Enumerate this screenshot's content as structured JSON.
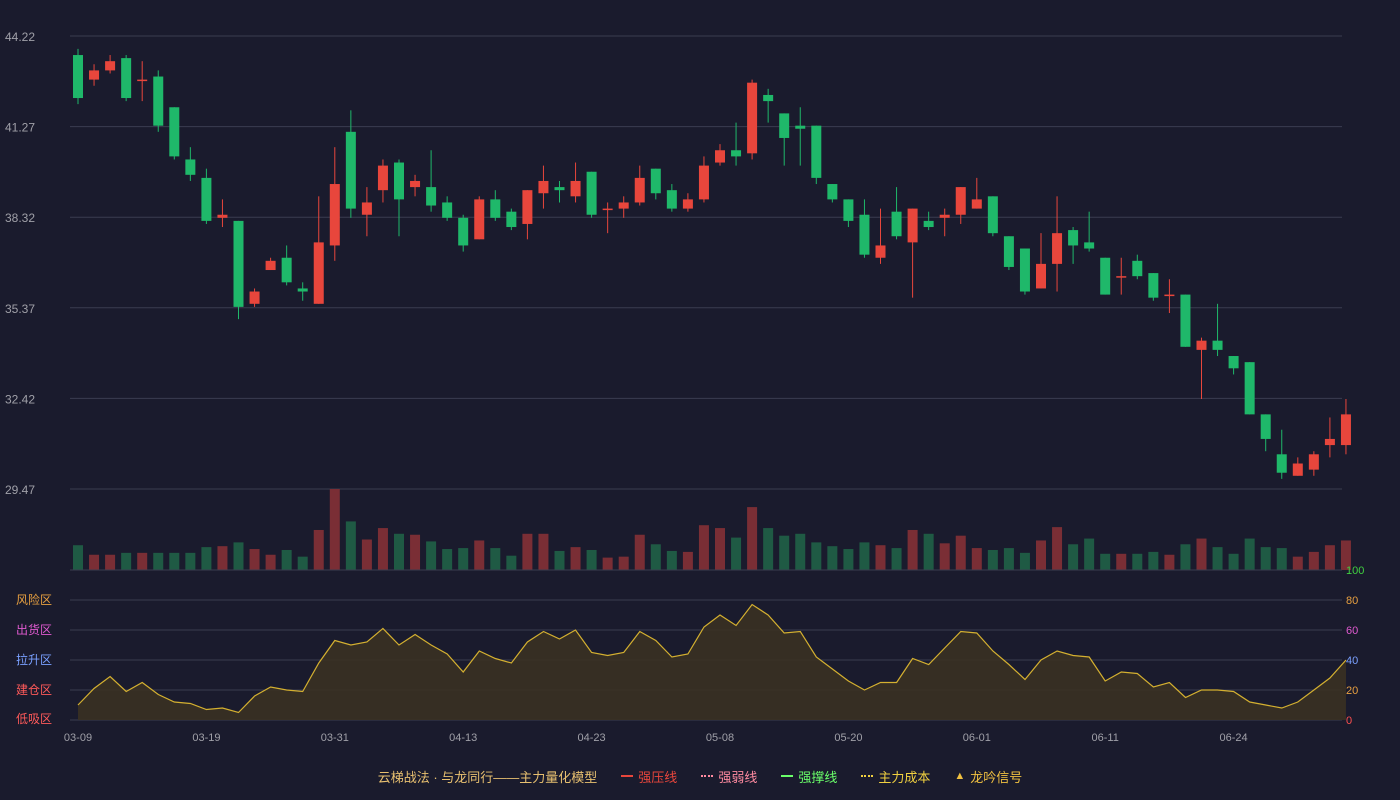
{
  "colors": {
    "background": "#1a1b2d",
    "up": "#e8463c",
    "down": "#1fb86a",
    "vol_up": "#7a2e35",
    "vol_down": "#1f5a44",
    "grid": "#3a3c50",
    "axis_text": "#a0a0a8",
    "osc_line": "#d4b030",
    "osc_fill": "#3a3122"
  },
  "chart_data": {
    "type": "candlestick",
    "price_axis": {
      "ylim": [
        29.47,
        44.22
      ],
      "ticks": [
        "44.22",
        "41.27",
        "38.32",
        "35.37",
        "32.42",
        "29.47"
      ]
    },
    "x_tick_labels": [
      {
        "i": 0,
        "label": "03-09"
      },
      {
        "i": 8,
        "label": "03-19"
      },
      {
        "i": 16,
        "label": "03-31"
      },
      {
        "i": 24,
        "label": "04-13"
      },
      {
        "i": 32,
        "label": "04-23"
      },
      {
        "i": 40,
        "label": "05-08"
      },
      {
        "i": 48,
        "label": "05-20"
      },
      {
        "i": 56,
        "label": "06-01"
      },
      {
        "i": 64,
        "label": "06-11"
      },
      {
        "i": 72,
        "label": "06-24"
      }
    ],
    "ohlc": [
      [
        43.6,
        43.8,
        42.0,
        42.2
      ],
      [
        42.8,
        43.3,
        42.6,
        43.1
      ],
      [
        43.1,
        43.6,
        43.0,
        43.4
      ],
      [
        43.5,
        43.6,
        42.1,
        42.2
      ],
      [
        42.8,
        43.4,
        42.1,
        42.8
      ],
      [
        42.9,
        43.1,
        41.1,
        41.3
      ],
      [
        41.9,
        41.9,
        40.2,
        40.3
      ],
      [
        40.2,
        40.6,
        39.5,
        39.7
      ],
      [
        39.6,
        39.9,
        38.1,
        38.2
      ],
      [
        38.3,
        38.9,
        38.0,
        38.4
      ],
      [
        38.2,
        38.2,
        35.0,
        35.4
      ],
      [
        35.5,
        36.0,
        35.4,
        35.9
      ],
      [
        36.6,
        37.0,
        36.6,
        36.9
      ],
      [
        37.0,
        37.4,
        36.1,
        36.2
      ],
      [
        36.0,
        36.2,
        35.6,
        35.9
      ],
      [
        35.5,
        39.0,
        35.5,
        37.5
      ],
      [
        37.4,
        40.6,
        36.9,
        39.4
      ],
      [
        41.1,
        41.8,
        38.3,
        38.6
      ],
      [
        38.4,
        39.3,
        37.7,
        38.8
      ],
      [
        39.2,
        40.2,
        38.8,
        40.0
      ],
      [
        40.1,
        40.2,
        37.7,
        38.9
      ],
      [
        39.3,
        39.7,
        39.0,
        39.5
      ],
      [
        39.3,
        40.5,
        38.5,
        38.7
      ],
      [
        38.8,
        39.0,
        38.2,
        38.3
      ],
      [
        38.3,
        38.4,
        37.2,
        37.4
      ],
      [
        37.6,
        39.0,
        37.6,
        38.9
      ],
      [
        38.9,
        39.2,
        38.2,
        38.3
      ],
      [
        38.5,
        38.6,
        37.9,
        38.0
      ],
      [
        38.1,
        39.2,
        37.6,
        39.2
      ],
      [
        39.1,
        40.0,
        38.6,
        39.5
      ],
      [
        39.3,
        39.5,
        38.8,
        39.2
      ],
      [
        39.0,
        40.1,
        38.8,
        39.5
      ],
      [
        39.8,
        39.8,
        38.3,
        38.4
      ],
      [
        38.6,
        38.8,
        37.8,
        38.6
      ],
      [
        38.6,
        39.0,
        38.3,
        38.8
      ],
      [
        38.8,
        40.0,
        38.7,
        39.6
      ],
      [
        39.9,
        39.9,
        38.9,
        39.1
      ],
      [
        39.2,
        39.4,
        38.5,
        38.6
      ],
      [
        38.6,
        39.1,
        38.5,
        38.9
      ],
      [
        38.9,
        40.3,
        38.8,
        40.0
      ],
      [
        40.1,
        40.7,
        40.0,
        40.5
      ],
      [
        40.5,
        41.4,
        40.0,
        40.3
      ],
      [
        40.4,
        42.8,
        40.2,
        42.7
      ],
      [
        42.3,
        42.5,
        41.4,
        42.1
      ],
      [
        41.7,
        41.7,
        40.0,
        40.9
      ],
      [
        41.3,
        41.9,
        40.0,
        41.2
      ],
      [
        41.3,
        41.3,
        39.4,
        39.6
      ],
      [
        39.4,
        39.4,
        38.8,
        38.9
      ],
      [
        38.9,
        38.9,
        38.0,
        38.2
      ],
      [
        38.4,
        38.9,
        37.0,
        37.1
      ],
      [
        37.0,
        38.6,
        36.8,
        37.4
      ],
      [
        38.5,
        39.3,
        37.6,
        37.7
      ],
      [
        37.5,
        38.6,
        35.7,
        38.6
      ],
      [
        38.2,
        38.5,
        37.9,
        38.0
      ],
      [
        38.3,
        38.6,
        37.7,
        38.4
      ],
      [
        38.4,
        39.3,
        38.1,
        39.3
      ],
      [
        38.6,
        39.6,
        38.6,
        38.9
      ],
      [
        39.0,
        39.0,
        37.7,
        37.8
      ],
      [
        37.7,
        37.7,
        36.6,
        36.7
      ],
      [
        37.3,
        37.3,
        35.8,
        35.9
      ],
      [
        36.0,
        37.8,
        36.0,
        36.8
      ],
      [
        36.8,
        39.0,
        35.9,
        37.8
      ],
      [
        37.9,
        38.0,
        36.8,
        37.4
      ],
      [
        37.5,
        38.5,
        37.2,
        37.3
      ],
      [
        37.0,
        37.0,
        35.8,
        35.8
      ],
      [
        36.4,
        37.0,
        35.8,
        36.4
      ],
      [
        36.9,
        37.1,
        36.3,
        36.4
      ],
      [
        36.5,
        36.5,
        35.6,
        35.7
      ],
      [
        35.8,
        36.3,
        35.2,
        35.8
      ],
      [
        35.8,
        35.8,
        34.1,
        34.1
      ],
      [
        34.0,
        34.4,
        32.4,
        34.3
      ],
      [
        34.3,
        35.5,
        33.8,
        34.0
      ],
      [
        33.8,
        33.8,
        33.2,
        33.4
      ],
      [
        33.6,
        33.6,
        31.9,
        31.9
      ],
      [
        31.9,
        31.9,
        30.7,
        31.1
      ],
      [
        30.6,
        31.4,
        29.8,
        30.0
      ],
      [
        29.9,
        30.5,
        29.9,
        30.3
      ],
      [
        30.1,
        30.7,
        29.9,
        30.6
      ],
      [
        30.9,
        31.8,
        30.5,
        31.1
      ],
      [
        30.9,
        32.4,
        30.6,
        31.9
      ]
    ],
    "volume": [
      26,
      16,
      16,
      18,
      18,
      18,
      18,
      18,
      24,
      25,
      29,
      22,
      16,
      21,
      14,
      42,
      85,
      51,
      32,
      44,
      38,
      37,
      30,
      22,
      23,
      31,
      23,
      15,
      38,
      38,
      20,
      24,
      21,
      13,
      14,
      37,
      27,
      20,
      19,
      47,
      44,
      34,
      66,
      44,
      36,
      38,
      29,
      25,
      22,
      29,
      26,
      23,
      42,
      38,
      28,
      36,
      23,
      21,
      23,
      18,
      31,
      45,
      27,
      33,
      17,
      17,
      17,
      19,
      16,
      27,
      33,
      24,
      17,
      33,
      24,
      23,
      14,
      19,
      26,
      31
    ],
    "oscillator": {
      "ylim": [
        0,
        100
      ],
      "ticks": [
        "100",
        "80",
        "60",
        "40",
        "20",
        "0"
      ],
      "tick_colors": [
        "#40d040",
        "#e8a040",
        "#e05ad0",
        "#7aa0ff",
        "#e8a040",
        "#ff5050"
      ],
      "zone_labels": [
        {
          "label": "风险区",
          "level": 80,
          "color": "#e8a040"
        },
        {
          "label": "出货区",
          "level": 60,
          "color": "#e05ad0"
        },
        {
          "label": "拉升区",
          "level": 40,
          "color": "#7aa0ff"
        },
        {
          "label": "建仓区",
          "level": 20,
          "color": "#ff5a5a"
        },
        {
          "label": "低吸区",
          "level": 0,
          "color": "#ff5a5a"
        }
      ],
      "values": [
        10,
        21,
        29,
        19,
        25,
        17,
        12,
        11,
        7,
        8,
        5,
        16,
        22,
        20,
        19,
        38,
        53,
        50,
        52,
        61,
        50,
        57,
        50,
        44,
        32,
        46,
        41,
        38,
        52,
        59,
        54,
        60,
        45,
        43,
        45,
        59,
        53,
        42,
        44,
        62,
        70,
        63,
        77,
        70,
        58,
        59,
        42,
        34,
        26,
        20,
        25,
        25,
        41,
        37,
        48,
        59,
        58,
        46,
        37,
        27,
        40,
        46,
        43,
        42,
        26,
        32,
        31,
        22,
        25,
        15,
        20,
        20,
        19,
        12,
        10,
        8,
        12,
        20,
        28,
        40
      ]
    }
  },
  "legend": {
    "title": "云梯战法 · 与龙同行——主力量化模型",
    "items": [
      {
        "label": "强压线",
        "color": "#e8463c",
        "style": "solid"
      },
      {
        "label": "强弱线",
        "color": "#ff8aa0",
        "style": "dotted"
      },
      {
        "label": "强撑线",
        "color": "#6aff6a",
        "style": "solid"
      },
      {
        "label": "主力成本",
        "color": "#f0d040",
        "style": "dotted"
      },
      {
        "label": "龙吟信号",
        "color": "#f0c040",
        "style": "triangle"
      }
    ]
  }
}
